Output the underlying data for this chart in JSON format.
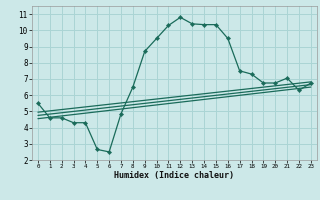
{
  "xlabel": "Humidex (Indice chaleur)",
  "background_color": "#cce8e8",
  "grid_color": "#aad4d4",
  "line_color": "#1a6b5a",
  "xlim": [
    -0.5,
    23.5
  ],
  "ylim": [
    2,
    11.5
  ],
  "xticks": [
    0,
    1,
    2,
    3,
    4,
    5,
    6,
    7,
    8,
    9,
    10,
    11,
    12,
    13,
    14,
    15,
    16,
    17,
    18,
    19,
    20,
    21,
    22,
    23
  ],
  "yticks": [
    2,
    3,
    4,
    5,
    6,
    7,
    8,
    9,
    10,
    11
  ],
  "curve1_x": [
    0,
    1,
    2,
    3,
    4,
    5,
    6,
    7,
    8,
    9,
    10,
    11,
    12,
    13,
    14,
    15,
    16,
    17,
    18,
    19,
    20,
    21,
    22,
    23
  ],
  "curve1_y": [
    5.5,
    4.6,
    4.6,
    4.3,
    4.3,
    2.65,
    2.5,
    4.85,
    6.5,
    8.7,
    9.5,
    10.3,
    10.8,
    10.4,
    10.35,
    10.35,
    9.5,
    7.5,
    7.3,
    6.75,
    6.75,
    7.05,
    6.3,
    6.75
  ],
  "line2_x": [
    0,
    23
  ],
  "line2_y": [
    4.55,
    6.5
  ],
  "line3_x": [
    0,
    23
  ],
  "line3_y": [
    4.75,
    6.65
  ],
  "line4_x": [
    0,
    23
  ],
  "line4_y": [
    4.95,
    6.82
  ]
}
